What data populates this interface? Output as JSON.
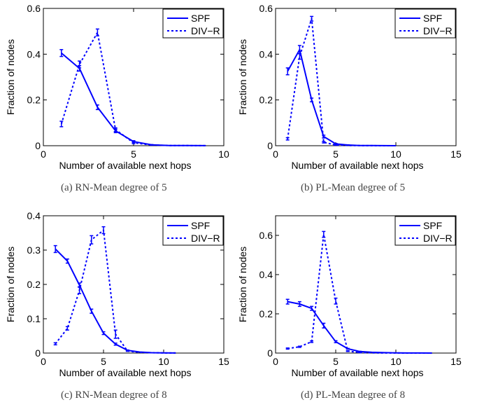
{
  "colors": {
    "series": "#0000ff",
    "axis": "#000000"
  },
  "chart_data": [
    {
      "type": "line",
      "caption": "(a) RN-Mean degree of 5",
      "xlabel": "Number of available next hops",
      "ylabel": "Fraction of nodes",
      "xlim": [
        0,
        10
      ],
      "ylim": [
        0,
        0.6
      ],
      "xticks": [
        "0",
        "5",
        "10"
      ],
      "yticks": [
        "0",
        "0.2",
        "0.4",
        "0.6"
      ],
      "legend": "top-right",
      "series": [
        {
          "name": "SPF",
          "style": "solid",
          "x": [
            1,
            2,
            3,
            4,
            5,
            6,
            7,
            8,
            9
          ],
          "y": [
            0.405,
            0.338,
            0.168,
            0.065,
            0.018,
            0.004,
            0.001,
            0.0005,
            0.0002
          ],
          "err": [
            0.015,
            0.012,
            0.01,
            0.008,
            0.004,
            0.001,
            0,
            0,
            0
          ]
        },
        {
          "name": "DIV−R",
          "style": "dashed",
          "x": [
            1,
            2,
            3,
            4,
            5,
            6,
            7,
            8,
            9
          ],
          "y": [
            0.095,
            0.355,
            0.495,
            0.07,
            0.013,
            0.003,
            0.001,
            0.0005,
            0.0002
          ],
          "err": [
            0.012,
            0.015,
            0.015,
            0.008,
            0.004,
            0.001,
            0,
            0,
            0
          ]
        }
      ]
    },
    {
      "type": "line",
      "caption": "(b) PL-Mean degree of 5",
      "xlabel": "Number of available next hops",
      "ylabel": "Fraction of nodes",
      "xlim": [
        0,
        15
      ],
      "ylim": [
        0,
        0.6
      ],
      "xticks": [
        "0",
        "5",
        "10",
        "15"
      ],
      "yticks": [
        "0",
        "0.2",
        "0.4",
        "0.6"
      ],
      "legend": "top-right",
      "series": [
        {
          "name": "SPF",
          "style": "solid",
          "x": [
            1,
            2,
            3,
            4,
            5,
            6,
            7,
            8,
            9,
            10
          ],
          "y": [
            0.325,
            0.42,
            0.2,
            0.04,
            0.008,
            0.003,
            0.001,
            0.0005,
            0.0002,
            0.0001
          ],
          "err": [
            0.015,
            0.018,
            0.008,
            0.006,
            0.002,
            0.001,
            0,
            0,
            0,
            0
          ]
        },
        {
          "name": "DIV−R",
          "style": "dashed",
          "x": [
            1,
            2,
            3,
            4,
            5,
            6,
            7,
            8,
            9,
            10
          ],
          "y": [
            0.03,
            0.39,
            0.555,
            0.015,
            0.003,
            0.001,
            0.0005,
            0.0002,
            0.0001,
            0.0001
          ],
          "err": [
            0.005,
            0.012,
            0.01,
            0.003,
            0.001,
            0,
            0,
            0,
            0,
            0
          ]
        }
      ]
    },
    {
      "type": "line",
      "caption": "(c) RN-Mean degree of 8",
      "xlabel": "Number of available next hops",
      "ylabel": "Fraction of nodes",
      "xlim": [
        0,
        15
      ],
      "ylim": [
        0,
        0.4
      ],
      "xticks": [
        "0",
        "5",
        "10",
        "15"
      ],
      "yticks": [
        "0",
        "0.1",
        "0.2",
        "0.3",
        "0.4"
      ],
      "legend": "top-right",
      "series": [
        {
          "name": "SPF",
          "style": "solid",
          "x": [
            1,
            2,
            3,
            4,
            5,
            6,
            7,
            8,
            9,
            10,
            11
          ],
          "y": [
            0.303,
            0.268,
            0.198,
            0.122,
            0.058,
            0.026,
            0.008,
            0.003,
            0.001,
            0.0005,
            0.0002
          ],
          "err": [
            0.01,
            0.006,
            0.006,
            0.006,
            0.004,
            0.003,
            0.001,
            0,
            0,
            0,
            0
          ]
        },
        {
          "name": "DIV−R",
          "style": "dashed",
          "x": [
            1,
            2,
            3,
            4,
            5,
            6,
            7,
            8,
            9,
            10,
            11
          ],
          "y": [
            0.027,
            0.072,
            0.183,
            0.33,
            0.358,
            0.055,
            0.006,
            0.002,
            0.001,
            0.0005,
            0.0002
          ],
          "err": [
            0.003,
            0.005,
            0.01,
            0.012,
            0.01,
            0.012,
            0.001,
            0,
            0,
            0,
            0
          ]
        }
      ]
    },
    {
      "type": "line",
      "caption": "(d) PL-Mean degree of 8",
      "xlabel": "Number of available next hops",
      "ylabel": "Fraction of nodes",
      "xlim": [
        0,
        15
      ],
      "ylim": [
        0,
        0.7
      ],
      "xticks": [
        "0",
        "5",
        "10",
        "15"
      ],
      "yticks": [
        "0",
        "0.2",
        "0.4",
        "0.6"
      ],
      "legend": "top-right",
      "series": [
        {
          "name": "SPF",
          "style": "solid",
          "x": [
            1,
            2,
            3,
            4,
            5,
            6,
            7,
            8,
            9,
            10,
            11,
            12,
            13
          ],
          "y": [
            0.262,
            0.25,
            0.228,
            0.14,
            0.058,
            0.022,
            0.008,
            0.004,
            0.002,
            0.001,
            0.0005,
            0.0002,
            0.0001
          ],
          "err": [
            0.012,
            0.012,
            0.01,
            0.012,
            0.005,
            0.002,
            0.001,
            0,
            0,
            0,
            0,
            0,
            0
          ]
        },
        {
          "name": "DIV−R",
          "style": "dashed",
          "x": [
            1,
            2,
            3,
            4,
            5,
            6,
            7,
            8,
            9,
            10,
            11,
            12,
            13
          ],
          "y": [
            0.023,
            0.032,
            0.058,
            0.605,
            0.265,
            0.01,
            0.003,
            0.001,
            0.0005,
            0.0002,
            0.0001,
            0.0001,
            0.0001
          ],
          "err": [
            0.003,
            0.003,
            0.004,
            0.015,
            0.015,
            0.002,
            0.001,
            0,
            0,
            0,
            0,
            0,
            0
          ]
        }
      ]
    }
  ]
}
